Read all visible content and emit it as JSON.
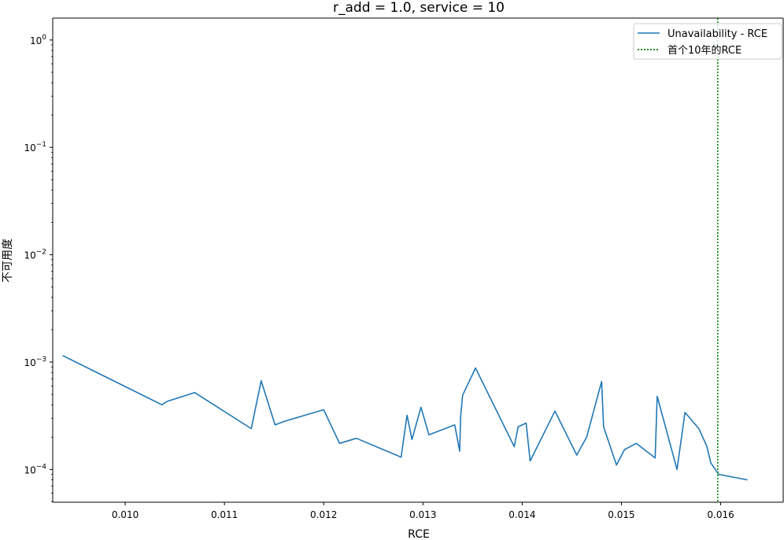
{
  "chart_data": {
    "type": "line",
    "title": "r_add = 1.0, service = 10",
    "xlabel": "RCE",
    "ylabel": "不可用度",
    "yscale": "log",
    "xlim": [
      0.00927,
      0.01663
    ],
    "ylim": [
      4.95e-05,
      1.6
    ],
    "grid": false,
    "legend_position": "top-right",
    "x_ticks": [
      {
        "value": 0.01,
        "label": "0.010"
      },
      {
        "value": 0.011,
        "label": "0.011"
      },
      {
        "value": 0.012,
        "label": "0.012"
      },
      {
        "value": 0.013,
        "label": "0.013"
      },
      {
        "value": 0.014,
        "label": "0.014"
      },
      {
        "value": 0.015,
        "label": "0.015"
      },
      {
        "value": 0.016,
        "label": "0.016"
      }
    ],
    "y_ticks": [
      {
        "exp": -4,
        "base": "10",
        "power": "−4"
      },
      {
        "exp": -3,
        "base": "10",
        "power": "−3"
      },
      {
        "exp": -2,
        "base": "10",
        "power": "−2"
      },
      {
        "exp": -1,
        "base": "10",
        "power": "−1"
      },
      {
        "exp": 0,
        "base": "10",
        "power": "0"
      }
    ],
    "series": [
      {
        "name": "Unavailability - RCE",
        "color": "#1f77b4",
        "style": "solid",
        "x": [
          0.00937,
          0.01037,
          0.01042,
          0.0107,
          0.01127,
          0.01137,
          0.01151,
          0.0116,
          0.012,
          0.01216,
          0.01233,
          0.01278,
          0.01284,
          0.01289,
          0.01298,
          0.01306,
          0.01332,
          0.01337,
          0.01338,
          0.0134,
          0.01353,
          0.01392,
          0.01396,
          0.01404,
          0.01408,
          0.01433,
          0.01455,
          0.01465,
          0.0148,
          0.01482,
          0.01495,
          0.01503,
          0.01515,
          0.01534,
          0.01536,
          0.01556,
          0.01564,
          0.01578,
          0.01586,
          0.0159,
          0.01598,
          0.01627
        ],
        "y": [
          0.00115,
          0.0004,
          0.00043,
          0.00052,
          0.00024,
          0.00067,
          0.00026,
          0.00028,
          0.00036,
          0.000175,
          0.000195,
          0.00013,
          0.00032,
          0.00019,
          0.00038,
          0.00021,
          0.00026,
          0.000148,
          0.00031,
          0.00049,
          0.00088,
          0.000163,
          0.00025,
          0.00027,
          0.00012,
          0.00035,
          0.000136,
          0.0002,
          0.00066,
          0.00025,
          0.00011,
          0.000153,
          0.000175,
          0.000128,
          0.00048,
          0.0001,
          0.00034,
          0.00024,
          0.000165,
          0.000115,
          9e-05,
          8e-05
        ]
      }
    ],
    "vlines": [
      {
        "name": "首个10年的RCE",
        "x": 0.01597,
        "color": "#008000",
        "style": "dotted"
      }
    ]
  }
}
